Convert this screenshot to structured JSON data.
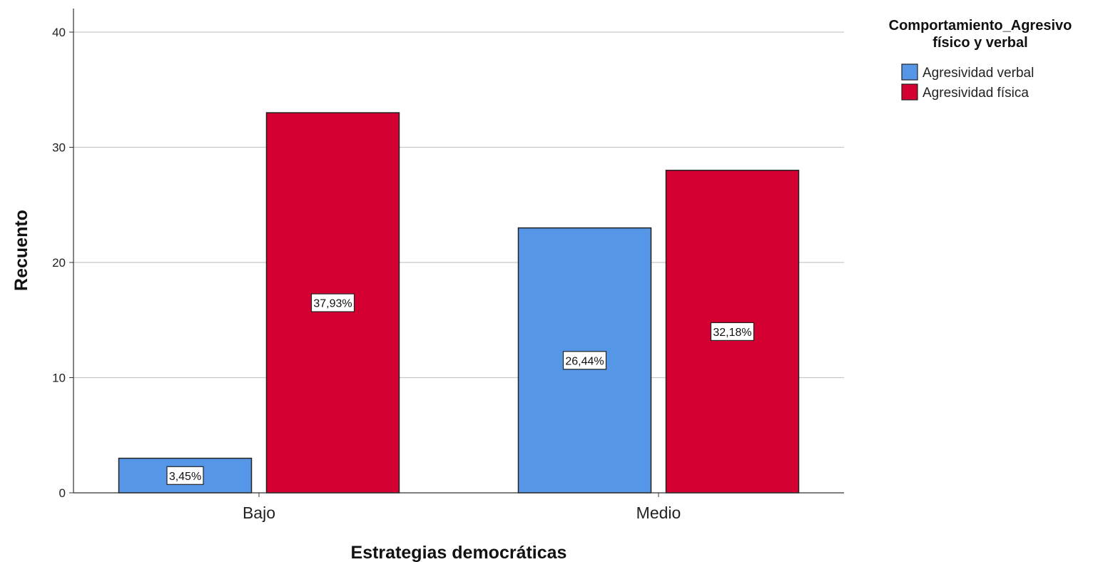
{
  "chart_data": {
    "type": "bar",
    "title": "",
    "xlabel": "Estrategias democráticas",
    "ylabel": "Recuento",
    "ylim": [
      0,
      42
    ],
    "yticks": [
      0,
      10,
      20,
      30,
      40
    ],
    "grid": true,
    "categories": [
      "Bajo",
      "Medio"
    ],
    "legend": {
      "title_line1": "Comportamiento_Agresivo",
      "title_line2": "físico y verbal",
      "position": "top-right"
    },
    "series": [
      {
        "name": "Agresividad verbal",
        "color": "#5596e6",
        "values": [
          3,
          23
        ],
        "labels": [
          "3,45%",
          "26,44%"
        ]
      },
      {
        "name": "Agresividad física",
        "color": "#d30031",
        "values": [
          33,
          28
        ],
        "labels": [
          "37,93%",
          "32,18%"
        ]
      }
    ]
  }
}
